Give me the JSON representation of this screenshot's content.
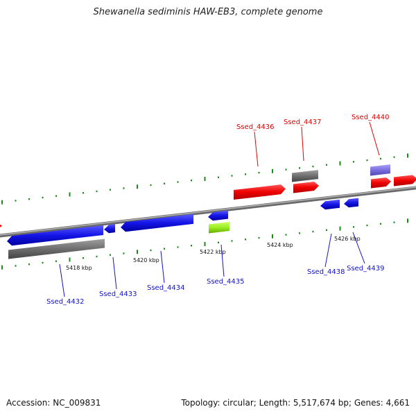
{
  "title": "Shewanella sediminis HAW-EB3, complete genome",
  "footer": {
    "accession": "Accession: NC_009831",
    "summary": "Topology: circular; Length: 5,517,674 bp; Genes: 4,661"
  },
  "colors": {
    "forward_cds": "#ee0000",
    "reverse_cds": "#1414e6",
    "gene_gray": "#6e6e6e",
    "rna_lime": "#99ee22",
    "purple": "#7a6ee0",
    "tick_green": "#1a8a1a",
    "backbone": "#8a8a8a"
  },
  "kbp_labels": [
    "5418 kbp",
    "5420 kbp",
    "5422 kbp",
    "5424 kbp",
    "5426 kbp"
  ],
  "gene_labels_top": [
    "Ssed_4436",
    "Ssed_4437",
    "Ssed_4440"
  ],
  "gene_labels_bottom": [
    "Ssed_4432",
    "Ssed_4433",
    "Ssed_4434",
    "Ssed_4435",
    "Ssed_4438",
    "Ssed_4439"
  ]
}
